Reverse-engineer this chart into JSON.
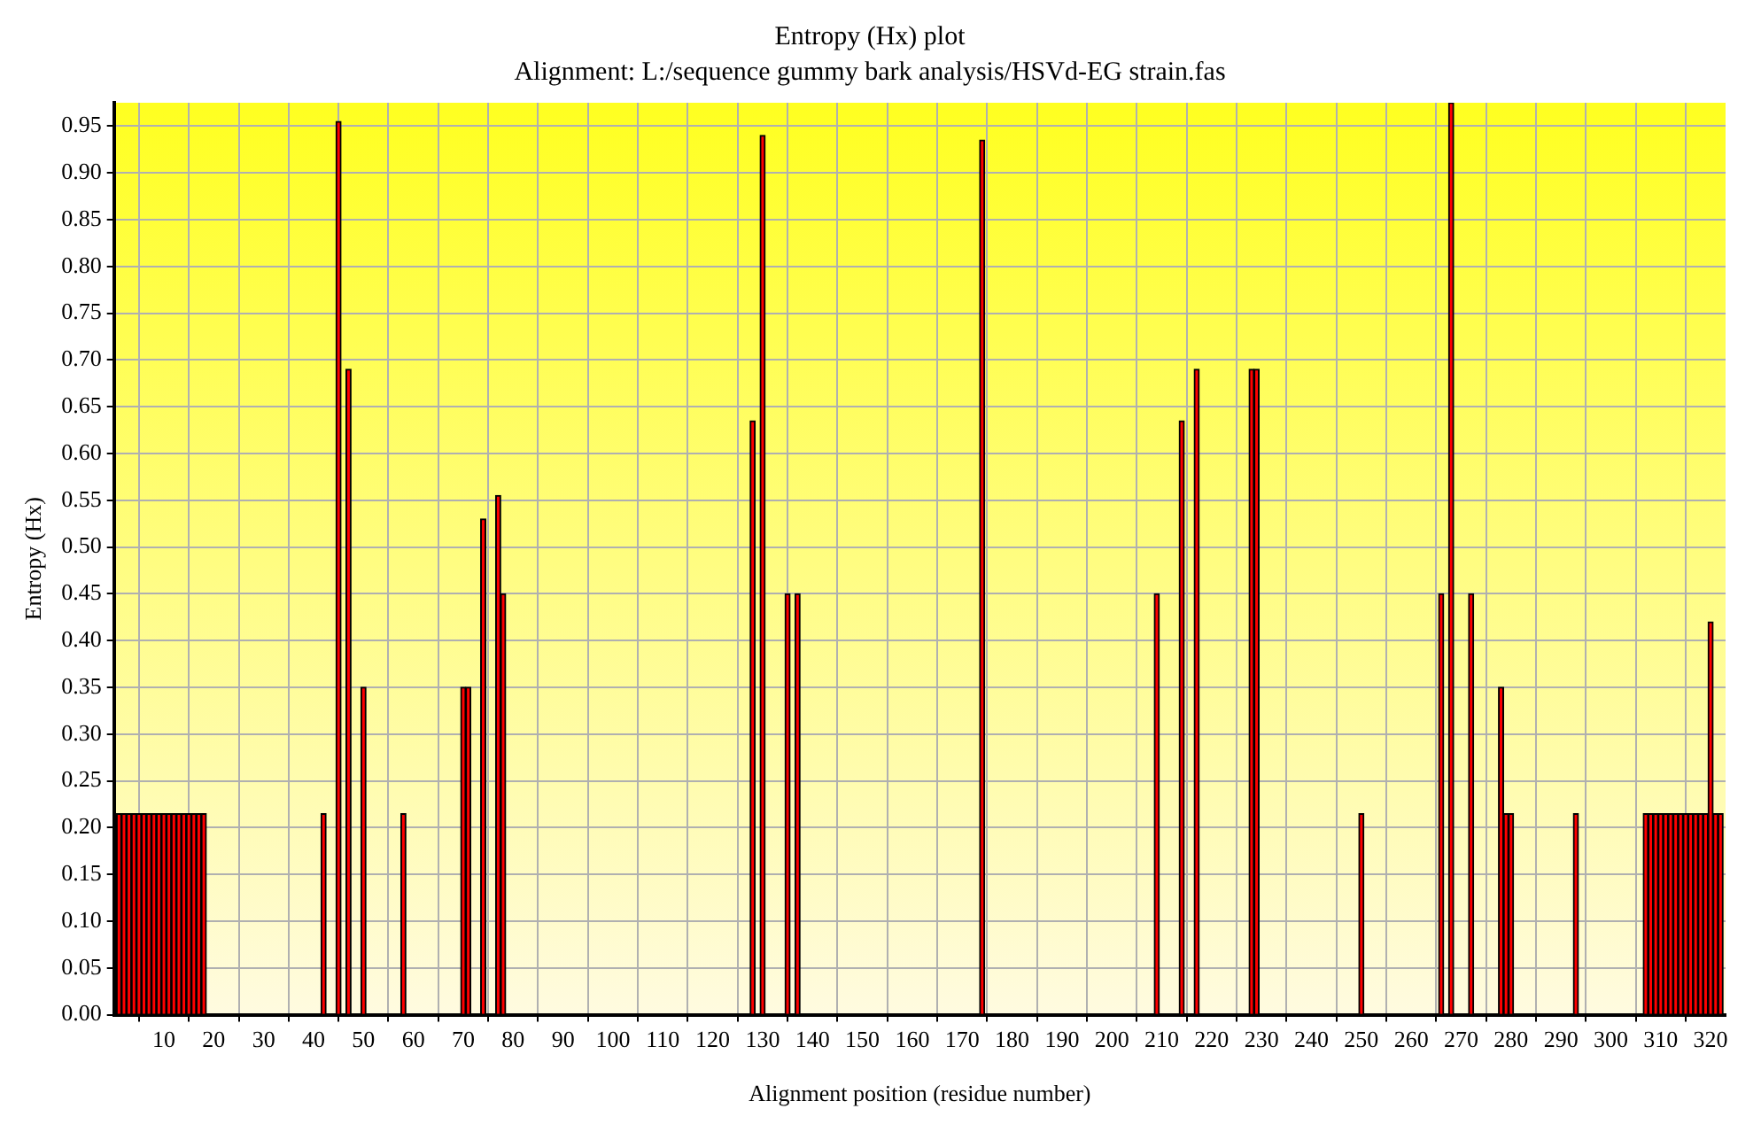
{
  "chart_data": {
    "type": "bar",
    "title": "Entropy (Hx) plot",
    "subtitle": "Alignment: L:/sequence gummy bark analysis/HSVd-EG strain.fas",
    "xlabel": "Alignment position (residue number)",
    "ylabel": "Entropy (Hx)",
    "x": [
      1,
      2,
      3,
      4,
      5,
      6,
      7,
      8,
      9,
      10,
      11,
      12,
      13,
      14,
      15,
      16,
      17,
      18,
      42,
      45,
      47,
      50,
      58,
      70,
      71,
      74,
      77,
      78,
      128,
      130,
      135,
      137,
      174,
      209,
      214,
      217,
      228,
      229,
      250,
      266,
      268,
      272,
      278,
      279,
      280,
      293,
      307,
      308,
      309,
      310,
      311,
      312,
      313,
      314,
      315,
      316,
      317,
      318,
      319,
      320,
      321,
      322
    ],
    "series": [
      {
        "color": "#ff0000",
        "values": [
          0.215,
          0.215,
          0.215,
          0.215,
          0.215,
          0.215,
          0.215,
          0.215,
          0.215,
          0.215,
          0.215,
          0.215,
          0.215,
          0.215,
          0.215,
          0.215,
          0.215,
          0.215,
          0.215,
          0.955,
          0.69,
          0.35,
          0.215,
          0.35,
          0.35,
          0.53,
          0.555,
          0.45,
          0.635,
          0.94,
          0.45,
          0.45,
          0.935,
          0.45,
          0.635,
          0.69,
          0.69,
          0.69,
          0.215,
          0.45,
          0.975,
          0.45,
          0.35,
          0.215,
          0.215,
          0.215,
          0.215,
          0.215,
          0.215,
          0.215,
          0.215,
          0.215,
          0.215,
          0.215,
          0.215,
          0.215,
          0.215,
          0.215,
          0.215,
          0.42,
          0.215,
          0.215
        ]
      }
    ],
    "xlim": [
      0,
      323
    ],
    "xticks": [
      10,
      20,
      30,
      40,
      50,
      60,
      70,
      80,
      90,
      100,
      110,
      120,
      130,
      140,
      150,
      160,
      170,
      180,
      190,
      200,
      210,
      220,
      230,
      240,
      250,
      260,
      270,
      280,
      290,
      300,
      310,
      320
    ],
    "ylim": [
      0,
      0.975
    ],
    "yticks": [
      {
        "value": 0,
        "label": "0.00"
      },
      {
        "value": 0.05,
        "label": "0.05"
      },
      {
        "value": 0.1,
        "label": "0.10"
      },
      {
        "value": 0.15,
        "label": "0.15"
      },
      {
        "value": 0.2,
        "label": "0.20"
      },
      {
        "value": 0.25,
        "label": "0.25"
      },
      {
        "value": 0.3,
        "label": "0.30"
      },
      {
        "value": 0.35,
        "label": "0.35"
      },
      {
        "value": 0.4,
        "label": "0.40"
      },
      {
        "value": 0.45,
        "label": "0.45"
      },
      {
        "value": 0.5,
        "label": "0.50"
      },
      {
        "value": 0.55,
        "label": "0.55"
      },
      {
        "value": 0.6,
        "label": "0.60"
      },
      {
        "value": 0.65,
        "label": "0.65"
      },
      {
        "value": 0.7,
        "label": "0.70"
      },
      {
        "value": 0.75,
        "label": "0.75"
      },
      {
        "value": 0.8,
        "label": "0.80"
      },
      {
        "value": 0.85,
        "label": "0.85"
      },
      {
        "value": 0.9,
        "label": "0.90"
      },
      {
        "value": 0.95,
        "label": "0.95"
      }
    ],
    "grid": true,
    "legend": false
  }
}
